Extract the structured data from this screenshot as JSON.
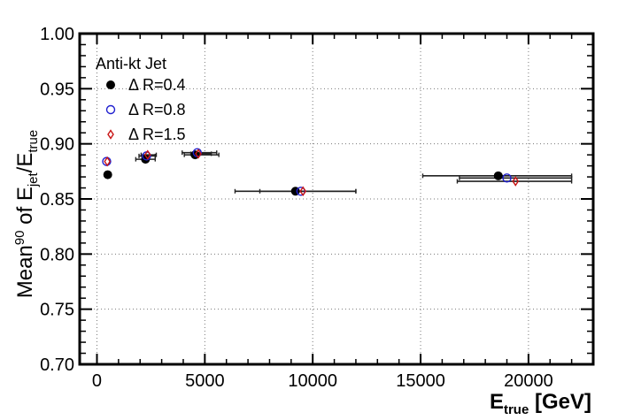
{
  "chart_data": {
    "type": "scatter",
    "title": "",
    "xlabel": {
      "main": "E",
      "sub": "true",
      "unit": " [GeV]"
    },
    "ylabel": {
      "prefix": "Mean",
      "sup": "90",
      "mid": " of E",
      "sub1": "jet",
      "slash": "/E",
      "sub2": "true"
    },
    "xlim": [
      -800,
      23000
    ],
    "ylim": [
      0.7,
      1.0
    ],
    "xticks": [
      0,
      5000,
      10000,
      15000,
      20000
    ],
    "xtick_labels": [
      "0",
      "5000",
      "10000",
      "15000",
      "20000"
    ],
    "yticks": [
      0.7,
      0.75,
      0.8,
      0.85,
      0.9,
      0.95,
      1.0
    ],
    "ytick_labels": [
      "0.70",
      "0.75",
      "0.80",
      "0.85",
      "0.90",
      "0.95",
      "1.00"
    ],
    "grid": true,
    "legend_title": "Anti-kt Jet",
    "legend_position": "top-left",
    "series": [
      {
        "name": "Δ R=0.4",
        "marker": "filled-circle",
        "color": "#000000",
        "points": [
          {
            "x": 500,
            "y": 0.872,
            "xerr": [
              0,
              0
            ]
          },
          {
            "x": 2250,
            "y": 0.886,
            "xerr": [
              450,
              450
            ]
          },
          {
            "x": 4550,
            "y": 0.89,
            "xerr": [
              500,
              1100
            ]
          },
          {
            "x": 9200,
            "y": 0.857,
            "xerr": [
              2800,
              2800
            ]
          },
          {
            "x": 18600,
            "y": 0.871,
            "xerr": [
              3500,
              3400
            ]
          }
        ]
      },
      {
        "name": "Δ R=0.8",
        "marker": "open-circle",
        "color": "#1f1fcf",
        "points": [
          {
            "x": 450,
            "y": 0.884,
            "xerr": [
              0,
              0
            ]
          },
          {
            "x": 2300,
            "y": 0.889,
            "xerr": [
              350,
              400
            ]
          },
          {
            "x": 4650,
            "y": 0.892,
            "xerr": [
              700,
              900
            ]
          },
          {
            "x": 9450,
            "y": 0.857,
            "xerr": [
              1900,
              2550
            ]
          },
          {
            "x": 19000,
            "y": 0.869,
            "xerr": [
              2200,
              3000
            ]
          }
        ]
      },
      {
        "name": "Δ R=1.5",
        "marker": "open-diamond",
        "color": "#c81414",
        "points": [
          {
            "x": 480,
            "y": 0.884,
            "xerr": [
              0,
              0
            ]
          },
          {
            "x": 2350,
            "y": 0.89,
            "xerr": [
              300,
              400
            ]
          },
          {
            "x": 4700,
            "y": 0.891,
            "xerr": [
              350,
              600
            ]
          },
          {
            "x": 9550,
            "y": 0.857,
            "xerr": [
              300,
              0
            ]
          },
          {
            "x": 19400,
            "y": 0.866,
            "xerr": [
              2700,
              2600
            ]
          }
        ]
      }
    ]
  }
}
